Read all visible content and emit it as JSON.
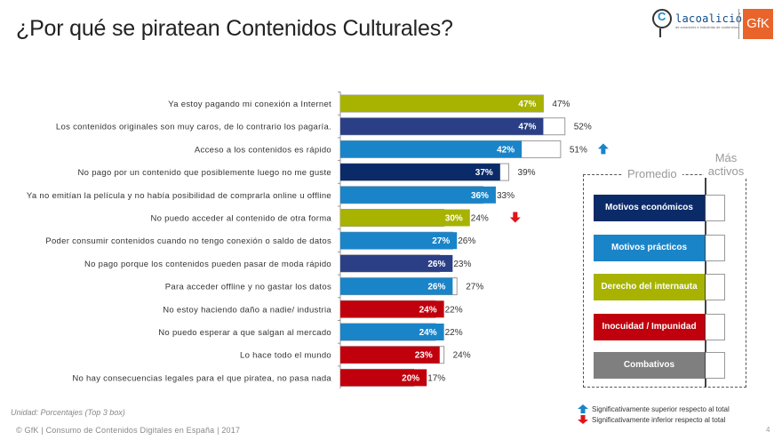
{
  "header": {
    "title": "¿Por qué se piratean Contenidos Culturales?",
    "logo_coalicion_text": "lacoalición",
    "logo_coalicion_sub": "de creadores e industrias de contenidos",
    "logo_c_glyph": "C",
    "logo_gfk": "GfK"
  },
  "chart_data": {
    "type": "bar",
    "orientation": "horizontal",
    "title": "¿Por qué se piratean Contenidos Culturales?",
    "xlabel": "",
    "ylabel": "",
    "unit": "%",
    "xlim": [
      0,
      55
    ],
    "grid": false,
    "categories": [
      "Ya estoy pagando mi conexión a Internet",
      "Los contenidos originales son muy caros, de lo contrario los pagaría.",
      "Acceso a los contenidos es rápido",
      "No pago por un contenido que posiblemente luego no me guste",
      "Ya no emitían la película y no había posibilidad de comprarla online u offline",
      "No puedo acceder al contenido de otra forma",
      "Poder consumir contenidos cuando no tengo conexión o saldo de datos",
      "No pago porque los contenidos pueden pasar de moda rápido",
      "Para acceder offline y no gastar los datos",
      "No estoy haciendo daño a nadie/ industria",
      "No puedo esperar a que salgan al mercado",
      "Lo hace todo el mundo",
      "No hay consecuencias legales para el que piratea, no pasa nada"
    ],
    "series": [
      {
        "name": "Promedio",
        "values": [
          47,
          47,
          42,
          37,
          36,
          30,
          27,
          26,
          26,
          24,
          24,
          23,
          20
        ]
      },
      {
        "name": "Más activos",
        "values": [
          47,
          52,
          51,
          39,
          33,
          24,
          26,
          23,
          27,
          22,
          22,
          24,
          17
        ]
      }
    ],
    "groups": [
      "derecho",
      "economicos",
      "practicos",
      "economicos",
      "practicos",
      "derecho",
      "practicos",
      "economicos",
      "practicos",
      "inocuidad",
      "practicos",
      "inocuidad",
      "inocuidad"
    ],
    "significance": [
      "",
      "",
      "up",
      "",
      "",
      "down",
      "",
      "",
      "",
      "",
      "",
      "",
      ""
    ],
    "legend_position": "right"
  },
  "colors": {
    "economicos": "#0b2a68",
    "economicos_alt": "#2b3f86",
    "practicos": "#1a84c8",
    "derecho": "#a7b300",
    "inocuidad": "#c0000c",
    "combativos": "#7f7f7f",
    "up_arrow": "#1a84c8",
    "down_arrow": "#e2131b"
  },
  "bar_colors": [
    "#a7b300",
    "#2b3f86",
    "#1a84c8",
    "#0b2a68",
    "#1a84c8",
    "#a7b300",
    "#1a84c8",
    "#2b3f86",
    "#1a84c8",
    "#c0000c",
    "#1a84c8",
    "#c0000c",
    "#c0000c"
  ],
  "legend": {
    "header_promedio": "Promedio",
    "header_mas_activos": "Más activos",
    "items": [
      {
        "label": "Motivos económicos",
        "color": "#0b2a68"
      },
      {
        "label": "Motivos prácticos",
        "color": "#1a84c8"
      },
      {
        "label": "Derecho del internauta",
        "color": "#a7b300"
      },
      {
        "label": "Inocuidad / Impunidad",
        "color": "#c0000c"
      },
      {
        "label": "Combativos",
        "color": "#7f7f7f"
      }
    ]
  },
  "significance_legend": {
    "up": "Significativamente superior respecto al total",
    "down": "Significativamente inferior respecto al total"
  },
  "footer": {
    "unit": "Unidad:  Porcentajes (Top 3 box)",
    "source": "© GfK | Consumo  de Contenidos  Digitales  en España  | 2017",
    "page_number": "4"
  }
}
